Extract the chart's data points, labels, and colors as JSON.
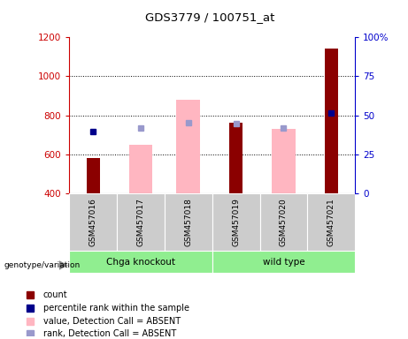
{
  "title": "GDS3779 / 100751_at",
  "samples": [
    "GSM457016",
    "GSM457017",
    "GSM457018",
    "GSM457019",
    "GSM457020",
    "GSM457021"
  ],
  "ymin": 400,
  "ymax": 1200,
  "y2min": 0,
  "y2max": 100,
  "yticks": [
    400,
    600,
    800,
    1000,
    1200
  ],
  "y2ticks": [
    0,
    25,
    50,
    75,
    100
  ],
  "red_bars": {
    "GSM457016": 580,
    "GSM457019": 760,
    "GSM457021": 1140
  },
  "pink_bars": {
    "GSM457017": 650,
    "GSM457018": 880,
    "GSM457020": 730
  },
  "blue_squares": {
    "GSM457016": 715,
    "GSM457021": 810
  },
  "light_blue_squares": {
    "GSM457017": 735,
    "GSM457018": 760,
    "GSM457019": 758,
    "GSM457020": 735
  },
  "red_color": "#8B0000",
  "pink_color": "#FFB6C1",
  "blue_color": "#00008B",
  "light_blue_color": "#9999CC",
  "left_axis_color": "#CC0000",
  "right_axis_color": "#0000CC",
  "group_color": "#90EE90",
  "cell_color": "#CCCCCC",
  "legend_items": [
    {
      "label": "count",
      "color": "#8B0000"
    },
    {
      "label": "percentile rank within the sample",
      "color": "#00008B"
    },
    {
      "label": "value, Detection Call = ABSENT",
      "color": "#FFB6C1"
    },
    {
      "label": "rank, Detection Call = ABSENT",
      "color": "#9999CC"
    }
  ]
}
